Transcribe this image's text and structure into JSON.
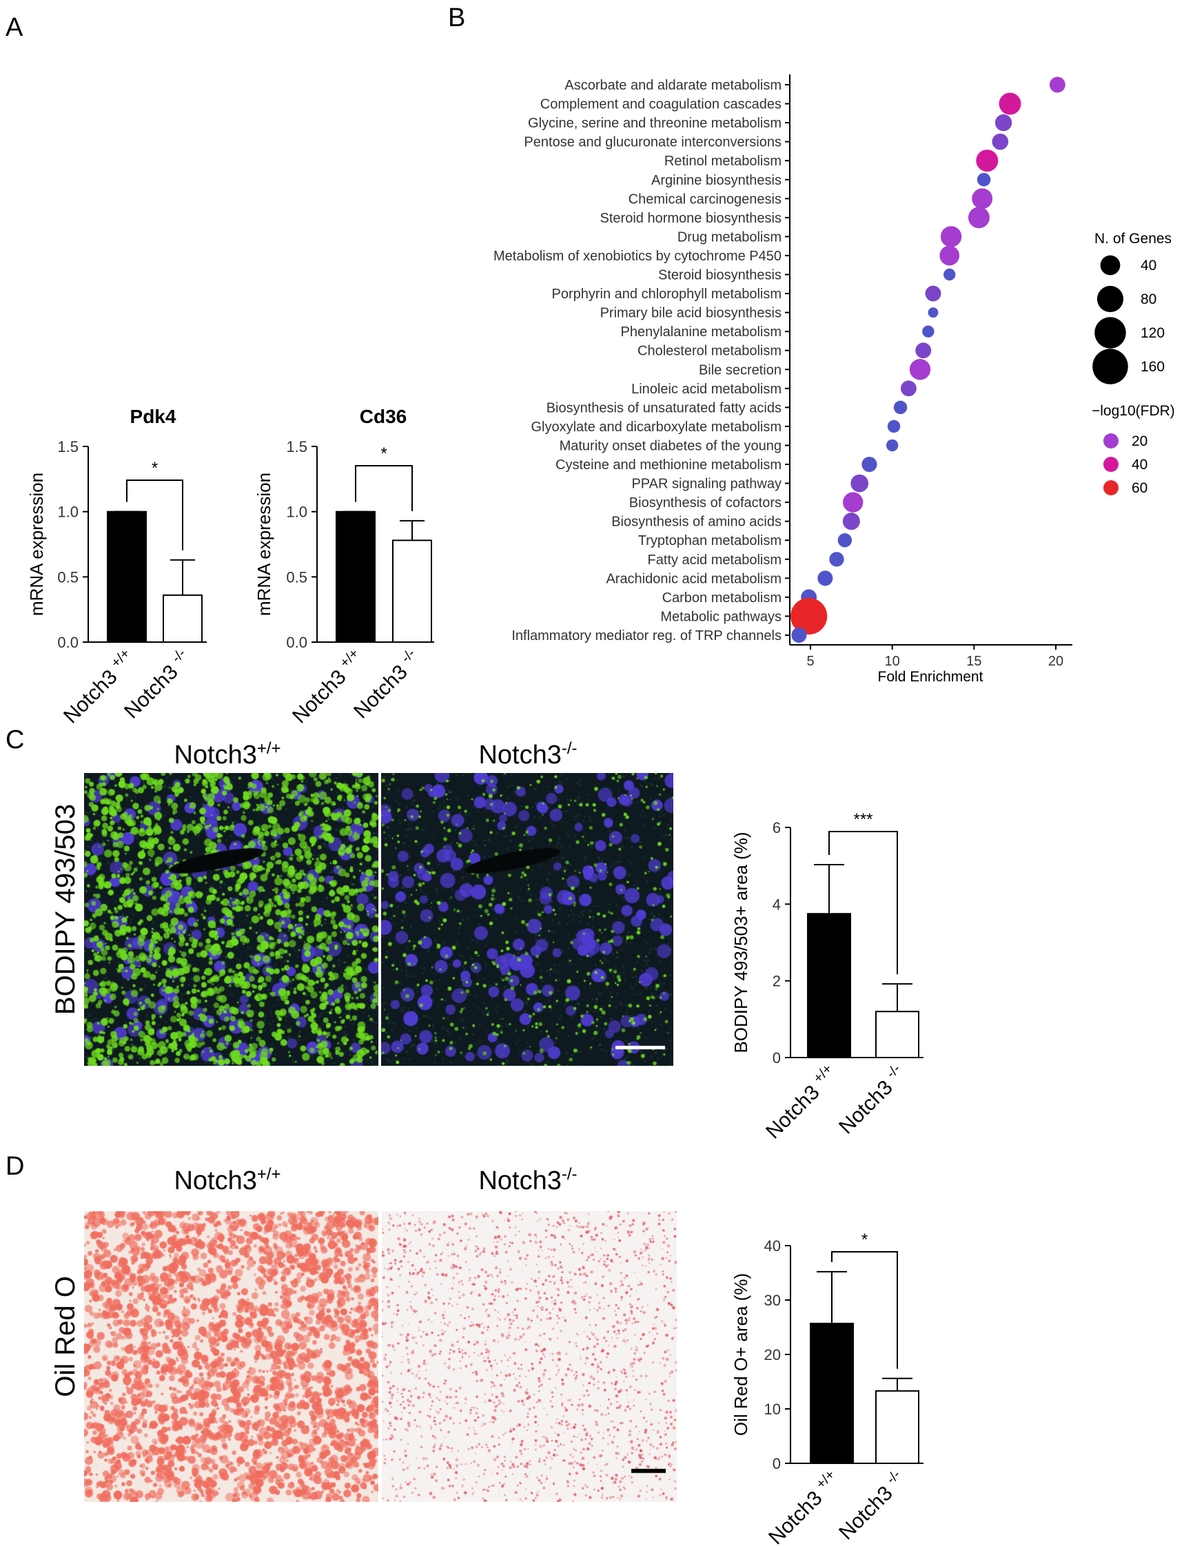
{
  "panels": {
    "A": "A",
    "B": "B",
    "C": "C",
    "D": "D"
  },
  "chart_data": [
    {
      "id": "pdk4",
      "type": "bar",
      "title": "Pdk4",
      "ylabel": "mRNA expression",
      "categories": [
        "Notch3 +/+",
        "Notch3 -/-"
      ],
      "values": [
        1.0,
        0.36
      ],
      "errors": [
        0.0,
        0.27
      ],
      "ylim": [
        0,
        1.5
      ],
      "yticks": [
        "0.0",
        "0.5",
        "1.0",
        "1.5"
      ],
      "significance": "*",
      "colors": [
        "#000000",
        "#ffffff"
      ]
    },
    {
      "id": "cd36",
      "type": "bar",
      "title": "Cd36",
      "ylabel": "mRNA expression",
      "categories": [
        "Notch3 +/+",
        "Notch3 -/-"
      ],
      "values": [
        1.0,
        0.78
      ],
      "errors": [
        0.0,
        0.15
      ],
      "ylim": [
        0,
        1.5
      ],
      "yticks": [
        "0.0",
        "0.5",
        "1.0",
        "1.5"
      ],
      "significance": "*",
      "colors": [
        "#000000",
        "#ffffff"
      ]
    },
    {
      "id": "kegg",
      "type": "scatter",
      "xlabel": "Fold Enrichment",
      "xlim": [
        4,
        21
      ],
      "xticks": [
        "5",
        "10",
        "15",
        "20"
      ],
      "size_legend_title": "N. of Genes",
      "size_legend": [
        "40",
        "80",
        "120",
        "160"
      ],
      "color_legend_title": "−log10(FDR)",
      "color_legend": [
        {
          "label": "20",
          "color": "#a43dd0"
        },
        {
          "label": "40",
          "color": "#d4189c"
        },
        {
          "label": "60",
          "color": "#e8262a"
        }
      ],
      "points": [
        {
          "term": "Ascorbate and aldarate metabolism",
          "fold": 20.1,
          "genes": 22,
          "fdr": 18
        },
        {
          "term": "Complement and coagulation cascades",
          "fold": 17.2,
          "genes": 52,
          "fdr": 36
        },
        {
          "term": "Glycine, serine and threonine metabolism",
          "fold": 16.8,
          "genes": 26,
          "fdr": 17
        },
        {
          "term": "Pentose and glucuronate interconversions",
          "fold": 16.6,
          "genes": 24,
          "fdr": 16
        },
        {
          "term": "Retinol metabolism",
          "fold": 15.8,
          "genes": 52,
          "fdr": 31
        },
        {
          "term": "Arginine biosynthesis",
          "fold": 15.6,
          "genes": 14,
          "fdr": 9
        },
        {
          "term": "Chemical carcinogenesis",
          "fold": 15.5,
          "genes": 44,
          "fdr": 26
        },
        {
          "term": "Steroid hormone biosynthesis",
          "fold": 15.3,
          "genes": 48,
          "fdr": 28
        },
        {
          "term": "Drug metabolism",
          "fold": 13.6,
          "genes": 46,
          "fdr": 25
        },
        {
          "term": "Metabolism of xenobiotics by cytochrome P450",
          "fold": 13.5,
          "genes": 40,
          "fdr": 22
        },
        {
          "term": "Steroid biosynthesis",
          "fold": 13.5,
          "genes": 10,
          "fdr": 6
        },
        {
          "term": "Porphyrin and chlorophyll metabolism",
          "fold": 12.5,
          "genes": 22,
          "fdr": 13
        },
        {
          "term": "Primary bile acid biosynthesis",
          "fold": 12.5,
          "genes": 6,
          "fdr": 4
        },
        {
          "term": "Phenylalanine metabolism",
          "fold": 12.2,
          "genes": 10,
          "fdr": 6
        },
        {
          "term": "Cholesterol metabolism",
          "fold": 11.9,
          "genes": 22,
          "fdr": 12
        },
        {
          "term": "Bile secretion",
          "fold": 11.7,
          "genes": 46,
          "fdr": 24
        },
        {
          "term": "Linoleic acid metabolism",
          "fold": 11.0,
          "genes": 22,
          "fdr": 11
        },
        {
          "term": "Biosynthesis of unsaturated fatty acids",
          "fold": 10.5,
          "genes": 14,
          "fdr": 7
        },
        {
          "term": "Glyoxylate and dicarboxylate metabolism",
          "fold": 10.1,
          "genes": 12,
          "fdr": 6
        },
        {
          "term": "Maturity onset diabetes of the young",
          "fold": 10.0,
          "genes": 10,
          "fdr": 5
        },
        {
          "term": "Cysteine and methionine metabolism",
          "fold": 8.6,
          "genes": 20,
          "fdr": 9
        },
        {
          "term": "PPAR signaling pathway",
          "fold": 8.0,
          "genes": 30,
          "fdr": 13
        },
        {
          "term": "Biosynthesis of cofactors",
          "fold": 7.6,
          "genes": 42,
          "fdr": 18
        },
        {
          "term": "Biosynthesis of amino acids",
          "fold": 7.5,
          "genes": 28,
          "fdr": 12
        },
        {
          "term": "Tryptophan metabolism",
          "fold": 7.1,
          "genes": 16,
          "fdr": 7
        },
        {
          "term": "Fatty acid metabolism",
          "fold": 6.6,
          "genes": 18,
          "fdr": 8
        },
        {
          "term": "Arachidonic acid metabolism",
          "fold": 5.9,
          "genes": 20,
          "fdr": 8
        },
        {
          "term": "Carbon metabolism",
          "fold": 4.9,
          "genes": 22,
          "fdr": 8
        },
        {
          "term": "Metabolic pathways",
          "fold": 4.9,
          "genes": 172,
          "fdr": 60
        },
        {
          "term": "Inflammatory mediator reg. of TRP channels",
          "fold": 4.3,
          "genes": 20,
          "fdr": 7
        }
      ]
    },
    {
      "id": "bodipy",
      "type": "bar",
      "ylabel": "BODIPY 493/503+ area (%)",
      "categories": [
        "Notch3 +/+",
        "Notch3 -/-"
      ],
      "values": [
        3.75,
        1.2
      ],
      "errors": [
        1.28,
        0.72
      ],
      "ylim": [
        0,
        6
      ],
      "yticks": [
        "0",
        "2",
        "4",
        "6"
      ],
      "significance": "***",
      "colors": [
        "#000000",
        "#ffffff"
      ]
    },
    {
      "id": "oilred",
      "type": "bar",
      "ylabel": "Oil Red O+  area (%)",
      "categories": [
        "Notch3 +/+",
        "Notch3 -/-"
      ],
      "values": [
        25.7,
        13.3
      ],
      "errors": [
        9.5,
        2.3
      ],
      "ylim": [
        0,
        40
      ],
      "yticks": [
        "0",
        "10",
        "20",
        "30",
        "40"
      ],
      "significance": "*",
      "colors": [
        "#000000",
        "#ffffff"
      ]
    }
  ],
  "micrographs": {
    "bodipy_row_label": "BODIPY 493/503",
    "oilred_row_label": "Oil Red O",
    "wt_label": "Notch3",
    "wt_sup": "+/+",
    "ko_label": "Notch3",
    "ko_sup": "-/-"
  }
}
